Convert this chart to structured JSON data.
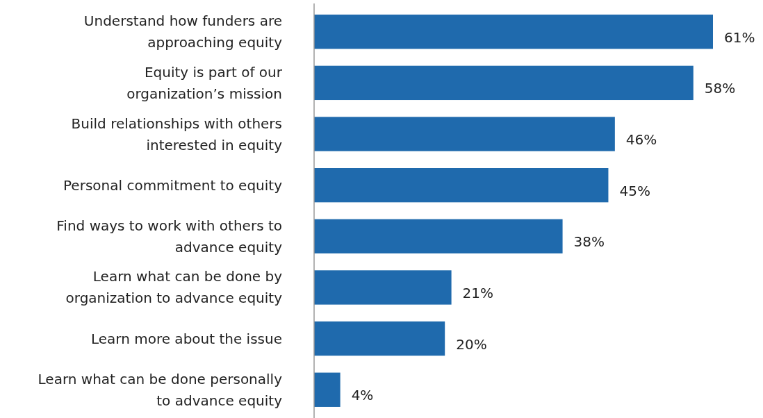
{
  "chart_data": {
    "type": "bar",
    "orientation": "horizontal",
    "categories": [
      "Understand how funders are approaching equity",
      "Equity is part of our organization’s mission",
      "Build relationships with others interested in equity",
      "Personal commitment to equity",
      "Find ways to work with others to advance equity",
      "Learn what can be done by organization to advance equity",
      "Learn more about the issue",
      "Learn what can be done personally to advance equity"
    ],
    "values": [
      61,
      58,
      46,
      45,
      38,
      21,
      20,
      4
    ],
    "value_labels": [
      "61%",
      "58%",
      "46%",
      "45%",
      "38%",
      "21%",
      "20%",
      "4%"
    ],
    "color": "#1f6aad"
  }
}
